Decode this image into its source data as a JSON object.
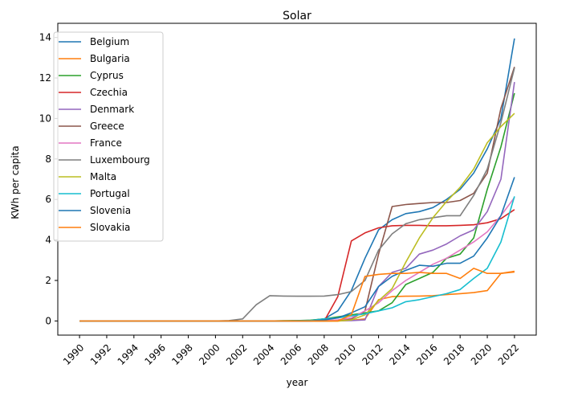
{
  "chart_data": {
    "type": "line",
    "title": "Solar",
    "xlabel": "year",
    "ylabel": "KWh per capita",
    "xlim": [
      1988.4,
      2023.6
    ],
    "ylim": [
      -0.7,
      14.7
    ],
    "x_ticks": [
      "1990",
      "1992",
      "1994",
      "1996",
      "1998",
      "2000",
      "2002",
      "2004",
      "2006",
      "2008",
      "2010",
      "2012",
      "2014",
      "2016",
      "2018",
      "2020",
      "2022"
    ],
    "y_ticks": [
      "0",
      "2",
      "4",
      "6",
      "8",
      "10",
      "12",
      "14"
    ],
    "grid": false,
    "legend_position": "top-left",
    "x": [
      1990,
      1991,
      1992,
      1993,
      1994,
      1995,
      1996,
      1997,
      1998,
      1999,
      2000,
      2001,
      2002,
      2003,
      2004,
      2005,
      2006,
      2007,
      2008,
      2009,
      2010,
      2011,
      2012,
      2013,
      2014,
      2015,
      2016,
      2017,
      2018,
      2019,
      2020,
      2021,
      2022
    ],
    "series": [
      {
        "name": "Belgium",
        "color": "#1f77b4",
        "values": [
          0,
          0,
          0,
          0,
          0,
          0,
          0,
          0,
          0,
          0,
          0,
          0,
          0,
          0,
          0,
          0,
          0.01,
          0.03,
          0.1,
          0.5,
          1.5,
          3.1,
          4.5,
          5.0,
          5.3,
          5.4,
          5.6,
          6.0,
          6.5,
          7.3,
          8.5,
          10.0,
          13.95
        ]
      },
      {
        "name": "Bulgaria",
        "color": "#ff7f0e",
        "values": [
          0,
          0,
          0,
          0,
          0,
          0,
          0,
          0,
          0,
          0,
          0,
          0,
          0,
          0,
          0,
          0,
          0,
          0,
          0,
          0,
          0.03,
          0.1,
          1.05,
          1.2,
          1.22,
          1.23,
          1.25,
          1.3,
          1.35,
          1.4,
          1.5,
          2.35,
          2.45
        ]
      },
      {
        "name": "Cyprus",
        "color": "#2ca02c",
        "values": [
          0,
          0,
          0,
          0,
          0,
          0,
          0,
          0,
          0,
          0,
          0,
          0,
          0,
          0,
          0,
          0.01,
          0.02,
          0.04,
          0.1,
          0.2,
          0.3,
          0.4,
          0.5,
          0.9,
          1.8,
          2.1,
          2.4,
          3.1,
          3.3,
          4.1,
          6.5,
          8.6,
          11.25
        ]
      },
      {
        "name": "Czechia",
        "color": "#d62728",
        "values": [
          0,
          0,
          0,
          0,
          0,
          0,
          0,
          0,
          0,
          0,
          0,
          0,
          0,
          0,
          0,
          0,
          0,
          0,
          0,
          1.2,
          3.95,
          4.35,
          4.6,
          4.7,
          4.72,
          4.72,
          4.7,
          4.7,
          4.72,
          4.75,
          4.85,
          5.05,
          5.5
        ]
      },
      {
        "name": "Denmark",
        "color": "#9467bd",
        "values": [
          0,
          0,
          0,
          0,
          0,
          0,
          0,
          0,
          0,
          0,
          0,
          0,
          0,
          0,
          0,
          0,
          0,
          0,
          0,
          0.01,
          0.02,
          0.05,
          1.7,
          2.4,
          2.6,
          3.3,
          3.5,
          3.8,
          4.2,
          4.5,
          5.4,
          7.0,
          11.8
        ]
      },
      {
        "name": "Greece",
        "color": "#8c564b",
        "values": [
          0,
          0,
          0,
          0,
          0,
          0,
          0,
          0,
          0,
          0,
          0,
          0,
          0,
          0,
          0,
          0,
          0,
          0,
          0,
          0.01,
          0.1,
          0.5,
          3.3,
          5.65,
          5.75,
          5.8,
          5.85,
          5.85,
          5.95,
          6.3,
          7.3,
          10.5,
          12.55
        ]
      },
      {
        "name": "France",
        "color": "#e377c2",
        "values": [
          0,
          0,
          0,
          0,
          0,
          0,
          0,
          0,
          0,
          0,
          0,
          0,
          0,
          0,
          0,
          0,
          0,
          0,
          0.01,
          0.05,
          0.15,
          0.5,
          0.9,
          1.5,
          2.0,
          2.4,
          2.8,
          3.1,
          3.5,
          3.9,
          4.4,
          5.2,
          6.1
        ]
      },
      {
        "name": "Luxembourg",
        "color": "#7f7f7f",
        "values": [
          0,
          0,
          0,
          0,
          0,
          0,
          0,
          0,
          0,
          0,
          0,
          0.02,
          0.1,
          0.8,
          1.25,
          1.23,
          1.22,
          1.22,
          1.23,
          1.3,
          1.45,
          2.0,
          3.5,
          4.3,
          4.8,
          5.0,
          5.1,
          5.2,
          5.2,
          6.2,
          7.5,
          9.8,
          12.5
        ]
      },
      {
        "name": "Malta",
        "color": "#bcbd22",
        "values": [
          0,
          0,
          0,
          0,
          0,
          0,
          0,
          0,
          0,
          0,
          0,
          0,
          0,
          0,
          0,
          0,
          0,
          0,
          0,
          0,
          0.05,
          0.3,
          1.0,
          1.6,
          2.9,
          4.1,
          5.1,
          5.9,
          6.6,
          7.5,
          8.8,
          9.6,
          10.25
        ]
      },
      {
        "name": "Portugal",
        "color": "#17becf",
        "values": [
          0,
          0,
          0,
          0,
          0,
          0,
          0,
          0,
          0,
          0,
          0,
          0,
          0,
          0,
          0,
          0,
          0.01,
          0.02,
          0.1,
          0.15,
          0.25,
          0.35,
          0.5,
          0.65,
          0.95,
          1.05,
          1.2,
          1.35,
          1.55,
          2.1,
          2.6,
          3.9,
          6.15
        ]
      },
      {
        "name": "Slovenia",
        "color": "#1f77b4",
        "values": [
          0,
          0,
          0,
          0,
          0,
          0,
          0,
          0,
          0,
          0,
          0,
          0,
          0,
          0,
          0,
          0,
          0,
          0,
          0.05,
          0.15,
          0.4,
          0.7,
          1.7,
          2.2,
          2.5,
          2.75,
          2.7,
          2.85,
          2.85,
          3.2,
          4.1,
          5.2,
          7.1
        ]
      },
      {
        "name": "Slovakia",
        "color": "#ff7f0e",
        "values": [
          0,
          0,
          0,
          0,
          0,
          0,
          0,
          0,
          0,
          0,
          0,
          0,
          0,
          0,
          0,
          0,
          0,
          0,
          0,
          0,
          0.3,
          2.2,
          2.3,
          2.35,
          2.35,
          2.4,
          2.35,
          2.35,
          2.1,
          2.6,
          2.35,
          2.35,
          2.42
        ]
      }
    ]
  }
}
